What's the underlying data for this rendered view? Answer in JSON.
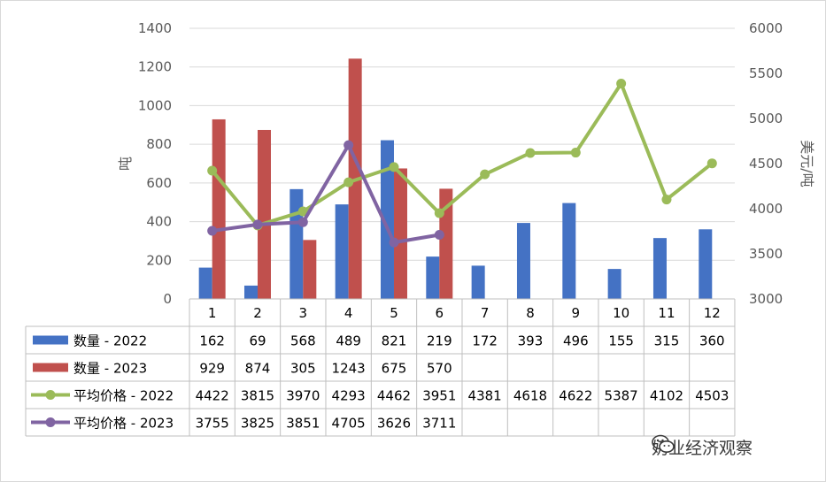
{
  "chart_data": {
    "type": "bar",
    "categories": [
      "1",
      "2",
      "3",
      "4",
      "5",
      "6",
      "7",
      "8",
      "9",
      "10",
      "11",
      "12"
    ],
    "series": [
      {
        "name": "数量 - 2022",
        "kind": "bar",
        "axis": "left",
        "color": "#4472c4",
        "values": [
          162,
          69,
          568,
          489,
          821,
          219,
          172,
          393,
          496,
          155,
          315,
          360
        ]
      },
      {
        "name": "数量 - 2023",
        "kind": "bar",
        "axis": "left",
        "color": "#c0504d",
        "values": [
          929,
          874,
          305,
          1243,
          675,
          570,
          null,
          null,
          null,
          null,
          null,
          null
        ]
      },
      {
        "name": "平均价格 - 2022",
        "kind": "line",
        "axis": "right",
        "color": "#9bbb59",
        "values": [
          4422,
          3815,
          3970,
          4293,
          4462,
          3951,
          4381,
          4618,
          4622,
          5387,
          4102,
          4503
        ]
      },
      {
        "name": "平均价格 - 2023",
        "kind": "line",
        "axis": "right",
        "color": "#8064a2",
        "values": [
          3755,
          3825,
          3851,
          4705,
          3626,
          3711,
          null,
          null,
          null,
          null,
          null,
          null
        ]
      }
    ],
    "ylabel": "吨",
    "y2label": "美元/吨",
    "ylim": [
      0,
      1400
    ],
    "yticks": [
      0,
      200,
      400,
      600,
      800,
      1000,
      1200,
      1400
    ],
    "y2lim": [
      3000,
      6000
    ],
    "y2ticks": [
      3000,
      3500,
      4000,
      4500,
      5000,
      5500,
      6000
    ],
    "grid": true,
    "legend": "data-table"
  },
  "watermark": {
    "icon": "wechat-icon",
    "text": "奶业经济观察"
  }
}
